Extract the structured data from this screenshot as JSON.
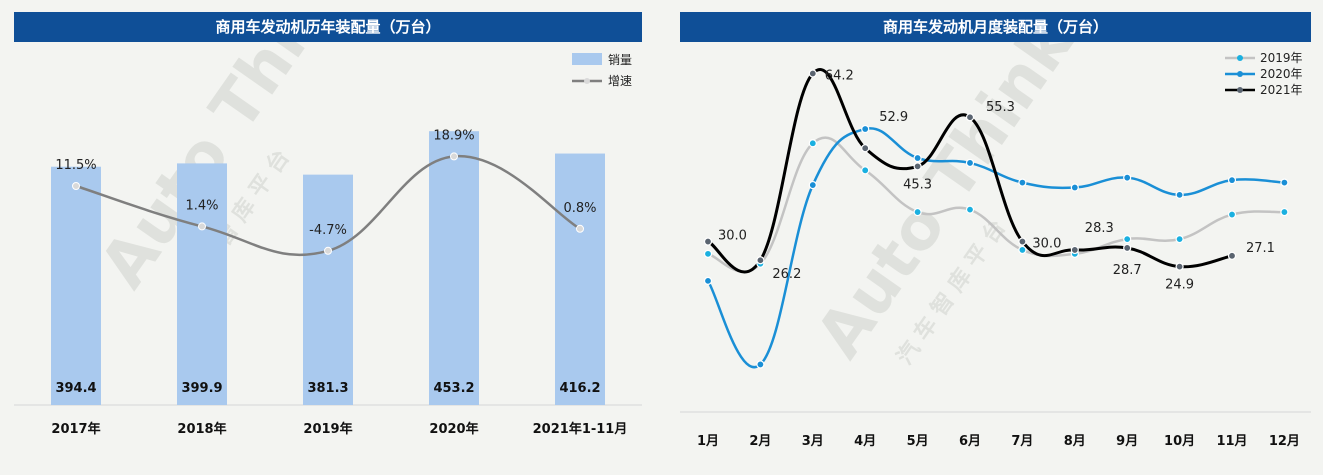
{
  "chart_data": [
    {
      "type": "bar",
      "title": "商用车发动机历年装配量（万台）",
      "categories": [
        "2017年",
        "2018年",
        "2019年",
        "2020年",
        "2021年1-11月"
      ],
      "series": [
        {
          "name": "销量",
          "type": "bar",
          "values": [
            394.4,
            399.9,
            381.3,
            453.2,
            416.2
          ],
          "color": "#a9c9ee"
        },
        {
          "name": "增速",
          "type": "line",
          "values": [
            11.5,
            1.4,
            -4.7,
            18.9,
            0.8
          ],
          "labels": [
            "11.5%",
            "1.4%",
            "-4.7%",
            "18.9%",
            "0.8%"
          ],
          "color": "#7f7f7f"
        }
      ],
      "legend_placement": "top-right",
      "grid": false
    },
    {
      "type": "line",
      "title": "商用车发动机月度装配量（万台）",
      "categories": [
        "1月",
        "2月",
        "3月",
        "4月",
        "5月",
        "6月",
        "7月",
        "8月",
        "9月",
        "10月",
        "11月",
        "12月"
      ],
      "series": [
        {
          "name": "2019年",
          "color": "#c3c3c3",
          "marker": "#1ab0e0",
          "values": [
            27.5,
            25.5,
            50.0,
            44.5,
            36.0,
            36.5,
            28.3,
            27.5,
            30.5,
            30.5,
            35.5,
            36.0
          ]
        },
        {
          "name": "2020年",
          "color": "#1a8fd6",
          "marker": "#1a8fd6",
          "values": [
            22.0,
            5.0,
            41.5,
            52.9,
            47.0,
            46.0,
            42.0,
            41.0,
            43.0,
            39.5,
            42.5,
            42.0
          ]
        },
        {
          "name": "2021年",
          "color": "#000000",
          "marker": "#5a6470",
          "values": [
            30.0,
            26.2,
            64.2,
            49.0,
            45.3,
            55.3,
            30.0,
            28.3,
            28.7,
            24.9,
            27.1,
            null
          ]
        }
      ],
      "data_labels": [
        {
          "series": 2,
          "index": 0,
          "text": "30.0"
        },
        {
          "series": 2,
          "index": 1,
          "text": "26.2"
        },
        {
          "series": 2,
          "index": 2,
          "text": "64.2"
        },
        {
          "series": 1,
          "index": 3,
          "text": "52.9"
        },
        {
          "series": 2,
          "index": 4,
          "text": "45.3"
        },
        {
          "series": 2,
          "index": 5,
          "text": "55.3"
        },
        {
          "series": 2,
          "index": 6,
          "text": "30.0"
        },
        {
          "series": 2,
          "index": 7,
          "text": "28.3"
        },
        {
          "series": 2,
          "index": 8,
          "text": "28.7"
        },
        {
          "series": 2,
          "index": 9,
          "text": "24.9"
        },
        {
          "series": 2,
          "index": 10,
          "text": "27.1"
        }
      ],
      "legend_placement": "top-right",
      "grid": false
    }
  ],
  "watermark": {
    "text": "Auto Thinker",
    "subtext": "汽 车 智 库 平 台"
  }
}
